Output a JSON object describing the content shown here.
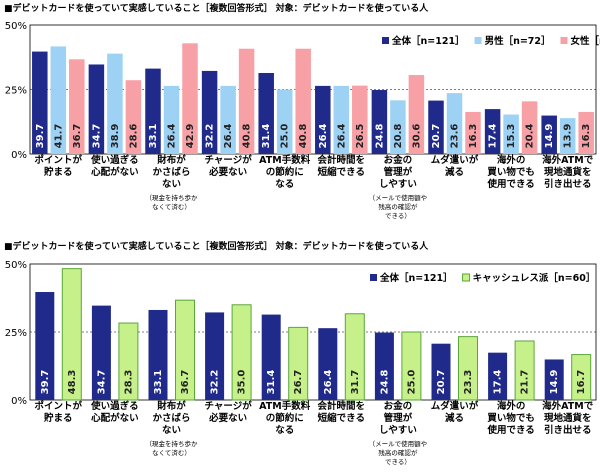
{
  "chart_data": [
    {
      "type": "bar",
      "title": "■デビットカードを使っていて実感していること［複数回答形式］ 対象：デビットカードを使っている人",
      "ylim": [
        0,
        50
      ],
      "yticks": [
        "0%",
        "25%",
        "50%"
      ],
      "categories": [
        [
          "ポイントが",
          "貯まる"
        ],
        [
          "使い過ぎる",
          "心配がない"
        ],
        [
          "財布が",
          "かさばら",
          "ない"
        ],
        [
          "チャージが",
          "必要ない"
        ],
        [
          "ATM手数料",
          "の節約に",
          "なる"
        ],
        [
          "会計時間を",
          "短縮できる"
        ],
        [
          "お金の",
          "管理が",
          "しやすい"
        ],
        [
          "ムダ遣いが",
          "減る"
        ],
        [
          "海外の",
          "買い物でも",
          "使用できる"
        ],
        [
          "海外ATMで",
          "現地通貨を",
          "引き出せる"
        ]
      ],
      "notes": [
        "",
        "",
        [
          "（現金を持ち歩か",
          "なくて済む）"
        ],
        "",
        "",
        "",
        [
          "（メールで使用額や",
          "残高の確認が",
          "できる）"
        ],
        "",
        "",
        ""
      ],
      "series": [
        {
          "name": "全体［n=121］",
          "color": "#1f2a8a",
          "values": [
            39.7,
            34.7,
            33.1,
            32.2,
            31.4,
            26.4,
            24.8,
            20.7,
            17.4,
            14.9
          ]
        },
        {
          "name": "男性［n=72］",
          "color": "#9ed2f5",
          "values": [
            41.7,
            38.9,
            26.4,
            26.4,
            25.0,
            26.4,
            20.8,
            23.6,
            15.3,
            13.9
          ]
        },
        {
          "name": "女性［n=49］",
          "color": "#f7a0a6",
          "values": [
            36.7,
            28.6,
            42.9,
            40.8,
            40.8,
            26.5,
            30.6,
            16.3,
            20.4,
            16.3
          ]
        }
      ],
      "legend": "top-right"
    },
    {
      "type": "bar",
      "title": "■デビットカードを使っていて実感していること［複数回答形式］ 対象：デビットカードを使っている人",
      "ylim": [
        0,
        50
      ],
      "yticks": [
        "0%",
        "25%",
        "50%"
      ],
      "categories": [
        [
          "ポイントが",
          "貯まる"
        ],
        [
          "使い過ぎる",
          "心配がない"
        ],
        [
          "財布が",
          "かさばら",
          "ない"
        ],
        [
          "チャージが",
          "必要ない"
        ],
        [
          "ATM手数料",
          "の節約に",
          "なる"
        ],
        [
          "会計時間を",
          "短縮できる"
        ],
        [
          "お金の",
          "管理が",
          "しやすい"
        ],
        [
          "ムダ遣いが",
          "減る"
        ],
        [
          "海外の",
          "買い物でも",
          "使用できる"
        ],
        [
          "海外ATMで",
          "現地通貨を",
          "引き出せる"
        ]
      ],
      "notes": [
        "",
        "",
        [
          "（現金を持ち歩か",
          "なくて済む）"
        ],
        "",
        "",
        "",
        [
          "（メールで使用額や",
          "残高の確認が",
          "できる）"
        ],
        "",
        "",
        ""
      ],
      "series": [
        {
          "name": "全体［n=121］",
          "color": "#1f2a8a",
          "values": [
            39.7,
            34.7,
            33.1,
            32.2,
            31.4,
            26.4,
            24.8,
            20.7,
            17.4,
            14.9
          ]
        },
        {
          "name": "キャッシュレス派［n=60］",
          "color": "#c6f08a",
          "stroke": "#5aa63a",
          "values": [
            48.3,
            28.3,
            36.7,
            35.0,
            26.7,
            31.7,
            25.0,
            23.3,
            21.7,
            16.7
          ]
        }
      ],
      "legend": "top-right"
    }
  ]
}
